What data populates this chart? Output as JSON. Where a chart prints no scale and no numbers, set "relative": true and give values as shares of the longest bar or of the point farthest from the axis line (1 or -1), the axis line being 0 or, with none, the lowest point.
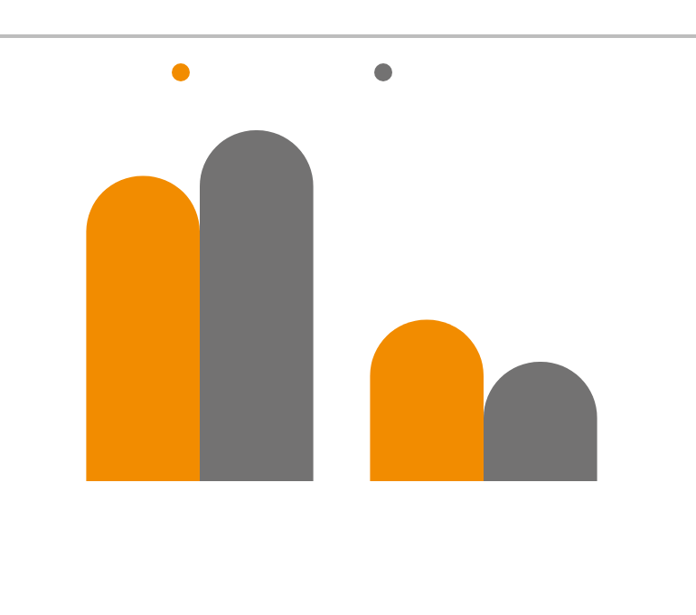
{
  "chart_data": {
    "type": "bar",
    "relative": true,
    "categories": [
      null,
      null
    ],
    "series": [
      {
        "color": "#f28c00",
        "values": [
          0.87,
          0.46
        ]
      },
      {
        "color": "#737272",
        "values": [
          1,
          0.34
        ]
      }
    ]
  }
}
